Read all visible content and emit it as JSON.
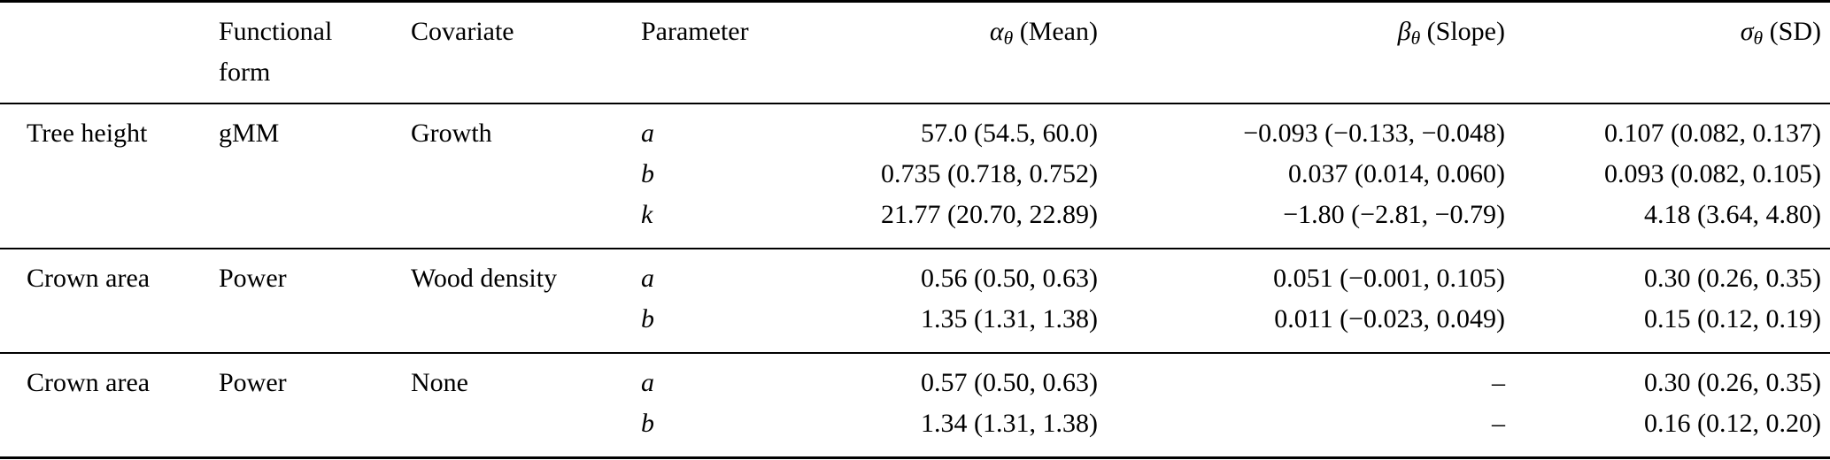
{
  "table": {
    "headers": {
      "row_label": "",
      "functional_form": "Functional form",
      "covariate": "Covariate",
      "parameter": "Parameter",
      "mean": {
        "symbol": "α",
        "subscript": "θ",
        "suffix": " (Mean)"
      },
      "slope": {
        "symbol": "β",
        "subscript": "θ",
        "suffix": " (Slope)"
      },
      "sd": {
        "symbol": "σ",
        "subscript": "θ",
        "suffix": " (SD)"
      }
    },
    "groups": [
      {
        "label": "Tree height",
        "functional_form": "gMM",
        "covariate": "Growth",
        "rows": [
          {
            "parameter": "a",
            "mean": "57.0 (54.5, 60.0)",
            "slope": "−0.093 (−0.133, −0.048)",
            "sd": "0.107 (0.082, 0.137)"
          },
          {
            "parameter": "b",
            "mean": "0.735 (0.718, 0.752)",
            "slope": "0.037 (0.014, 0.060)",
            "sd": "0.093 (0.082, 0.105)"
          },
          {
            "parameter": "k",
            "mean": "21.77 (20.70, 22.89)",
            "slope": "−1.80 (−2.81, −0.79)",
            "sd": "4.18 (3.64, 4.80)"
          }
        ]
      },
      {
        "label": "Crown area",
        "functional_form": "Power",
        "covariate": "Wood density",
        "rows": [
          {
            "parameter": "a",
            "mean": "0.56 (0.50, 0.63)",
            "slope": "0.051 (−0.001, 0.105)",
            "sd": "0.30 (0.26, 0.35)"
          },
          {
            "parameter": "b",
            "mean": "1.35 (1.31, 1.38)",
            "slope": "0.011 (−0.023, 0.049)",
            "sd": "0.15 (0.12, 0.19)"
          }
        ]
      },
      {
        "label": "Crown area",
        "functional_form": "Power",
        "covariate": "None",
        "rows": [
          {
            "parameter": "a",
            "mean": "0.57 (0.50, 0.63)",
            "slope": "–",
            "sd": "0.30 (0.26, 0.35)"
          },
          {
            "parameter": "b",
            "mean": "1.34 (1.31, 1.38)",
            "slope": "–",
            "sd": "0.16 (0.12, 0.20)"
          }
        ]
      }
    ]
  }
}
